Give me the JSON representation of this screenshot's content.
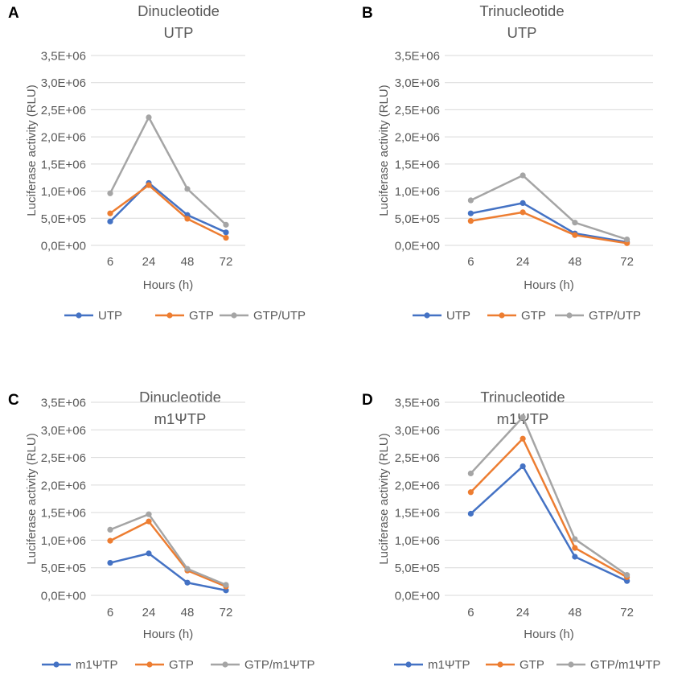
{
  "colors": {
    "series1": "#4472C4",
    "series2": "#ED7D31",
    "series3": "#A5A5A5",
    "grid": "#D9D9D9",
    "text": "#595959"
  },
  "chart_data": [
    {
      "panel_letter": "A",
      "type": "line",
      "title": [
        "Dinucleotide",
        "UTP"
      ],
      "xlabel": "Hours (h)",
      "ylabel": "Luciferase activity (RLU)",
      "categories": [
        "6",
        "24",
        "48",
        "72"
      ],
      "ylim": [
        0,
        3500000
      ],
      "yticks": [
        "0,0E+00",
        "5,0E+05",
        "1,0E+06",
        "1,5E+06",
        "2,0E+06",
        "2,5E+06",
        "3,0E+06",
        "3,5E+06"
      ],
      "grid": true,
      "legend": "bottom",
      "series": [
        {
          "name": "UTP",
          "values": [
            440000,
            1150000,
            560000,
            240000
          ]
        },
        {
          "name": "GTP",
          "values": [
            590000,
            1110000,
            490000,
            140000
          ]
        },
        {
          "name": "GTP/UTP",
          "values": [
            960000,
            2360000,
            1040000,
            380000
          ]
        }
      ]
    },
    {
      "panel_letter": "B",
      "type": "line",
      "title": [
        "Trinucleotide",
        "UTP"
      ],
      "xlabel": "Hours (h)",
      "ylabel": "Luciferase activity (RLU)",
      "categories": [
        "6",
        "24",
        "48",
        "72"
      ],
      "ylim": [
        0,
        3500000
      ],
      "yticks": [
        "0,0E+00",
        "5,0E+05",
        "1,0E+06",
        "1,5E+06",
        "2,0E+06",
        "2,5E+06",
        "3,0E+06",
        "3,5E+06"
      ],
      "grid": true,
      "legend": "bottom",
      "series": [
        {
          "name": "UTP",
          "values": [
            590000,
            780000,
            220000,
            60000
          ]
        },
        {
          "name": "GTP",
          "values": [
            450000,
            610000,
            190000,
            40000
          ]
        },
        {
          "name": "GTP/UTP",
          "values": [
            830000,
            1290000,
            420000,
            110000
          ]
        }
      ]
    },
    {
      "panel_letter": "C",
      "type": "line",
      "title": [
        "Dinucleotide",
        "m1ΨTP"
      ],
      "xlabel": "Hours (h)",
      "ylabel": "Luciferase activity (RLU)",
      "categories": [
        "6",
        "24",
        "48",
        "72"
      ],
      "ylim": [
        0,
        3500000
      ],
      "yticks": [
        "0,0E+00",
        "5,0E+05",
        "1,0E+06",
        "1,5E+06",
        "2,0E+06",
        "2,5E+06",
        "3,0E+06",
        "3,5E+06"
      ],
      "grid": true,
      "legend": "bottom",
      "series": [
        {
          "name": "m1ΨTP",
          "values": [
            590000,
            760000,
            230000,
            90000
          ]
        },
        {
          "name": "GTP",
          "values": [
            990000,
            1340000,
            450000,
            160000
          ]
        },
        {
          "name": "GTP/m1ΨTP",
          "values": [
            1190000,
            1470000,
            480000,
            190000
          ]
        }
      ]
    },
    {
      "panel_letter": "D",
      "type": "line",
      "title": [
        "Trinucleotide",
        "m1ΨTP"
      ],
      "xlabel": "Hours (h)",
      "ylabel": "Luciferase activity (RLU)",
      "categories": [
        "6",
        "24",
        "48",
        "72"
      ],
      "ylim": [
        0,
        3500000
      ],
      "yticks": [
        "0,0E+00",
        "5,0E+05",
        "1,0E+06",
        "1,5E+06",
        "2,0E+06",
        "2,5E+06",
        "3,0E+06",
        "3,5E+06"
      ],
      "grid": true,
      "legend": "bottom",
      "series": [
        {
          "name": "m1ΨTP",
          "values": [
            1480000,
            2340000,
            700000,
            260000
          ]
        },
        {
          "name": "GTP",
          "values": [
            1870000,
            2840000,
            860000,
            330000
          ]
        },
        {
          "name": "GTP/m1ΨTP",
          "values": [
            2210000,
            3230000,
            1020000,
            370000
          ]
        }
      ]
    }
  ]
}
